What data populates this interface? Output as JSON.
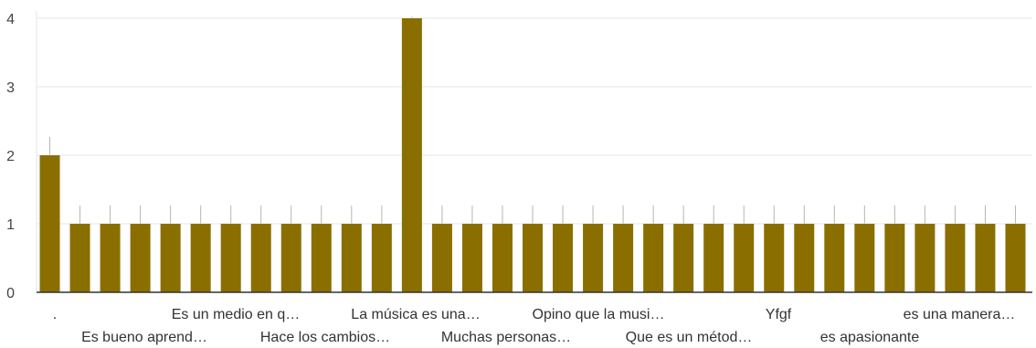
{
  "chart_data": {
    "type": "bar",
    "title": "",
    "xlabel": "",
    "ylabel": "",
    "ylim": [
      0,
      4
    ],
    "yticks": [
      0,
      1,
      2,
      3,
      4
    ],
    "grid": true,
    "colors": {
      "bar": "#8A6F00",
      "grid": "#E6E6E6",
      "axis": "#333333",
      "whisker": "#B5B5B5"
    },
    "categories": [
      ".",
      "Es bueno aprend…",
      "",
      "Es un medio en q…",
      "",
      "Hace los cambios…",
      "",
      "La música es una…",
      "",
      "Muchas personas…",
      "",
      "Opino que la musi…",
      "",
      "Que es un métod…",
      "",
      "Yfgf",
      "",
      "es apasionante",
      "",
      "es una manera…",
      "",
      "",
      "",
      "",
      "",
      "",
      "",
      "",
      "",
      "",
      "",
      "",
      ""
    ],
    "values": [
      2,
      1,
      1,
      1,
      1,
      1,
      1,
      1,
      1,
      1,
      1,
      1,
      4,
      1,
      1,
      1,
      1,
      1,
      1,
      1,
      1,
      1,
      1,
      1,
      1,
      1,
      1,
      1,
      1,
      1,
      1,
      1,
      1
    ]
  }
}
